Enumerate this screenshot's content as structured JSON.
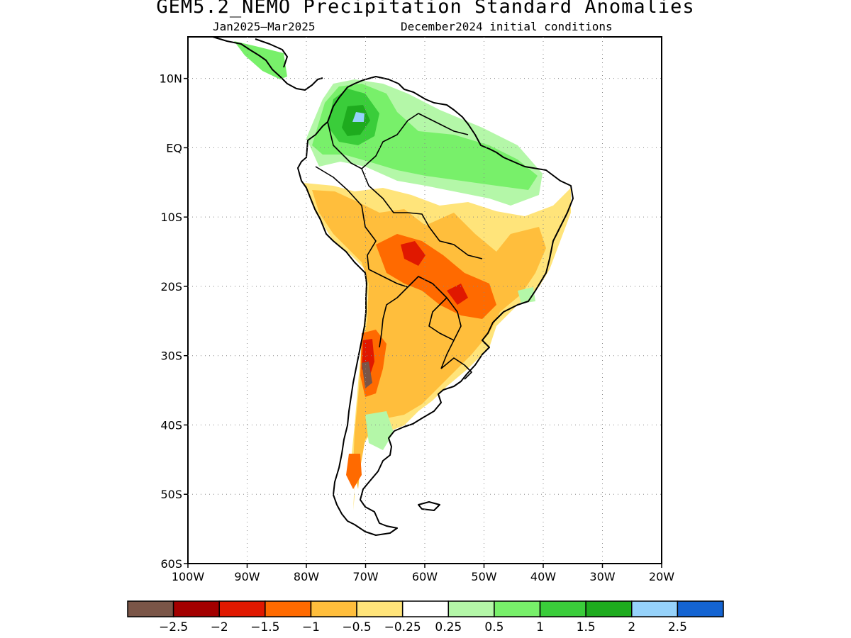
{
  "title": "GEM5.2_NEMO Precipitation Standard Anomalies",
  "subtitle_period": "Jan2025–Mar2025",
  "subtitle_init": "December2024 initial conditions",
  "map": {
    "lat_ticks": [
      "10N",
      "EQ",
      "10S",
      "20S",
      "30S",
      "40S",
      "50S",
      "60S"
    ],
    "lon_ticks": [
      "100W",
      "90W",
      "80W",
      "70W",
      "60W",
      "50W",
      "40W",
      "30W",
      "20W"
    ],
    "lon_range": [
      -100,
      -20
    ],
    "lat_range": [
      -60,
      16
    ],
    "gridlines": "dotted"
  },
  "legend": {
    "colors": [
      "#7a5547",
      "#a30000",
      "#e01800",
      "#ff6a00",
      "#ffbe3c",
      "#ffe47a",
      "#ffffff",
      "#b4f7a8",
      "#78f06a",
      "#3acd3a",
      "#1eab1e",
      "#96d2fa",
      "#1464d2"
    ],
    "labels": [
      "−2.5",
      "−2",
      "−1.5",
      "−1",
      "−0.5",
      "−0.25",
      "0.25",
      "0.5",
      "1",
      "1.5",
      "2",
      "2.5"
    ]
  }
}
